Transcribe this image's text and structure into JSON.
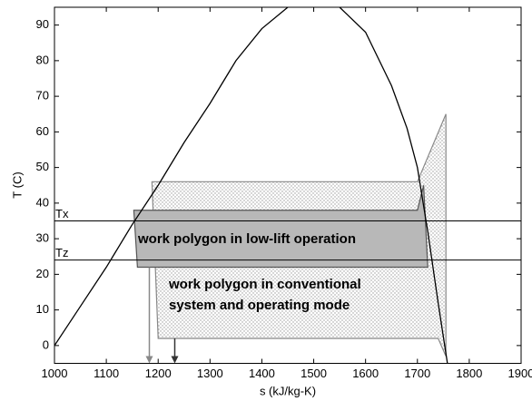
{
  "chart_data": {
    "type": "line",
    "xlabel": "s (kJ/kg-K)",
    "ylabel": "T (C)",
    "xlim": [
      1000,
      1900
    ],
    "ylim": [
      -5,
      95
    ],
    "xticks": [
      1000,
      1100,
      1200,
      1300,
      1400,
      1500,
      1600,
      1700,
      1800,
      1900
    ],
    "yticks": [
      0,
      10,
      20,
      30,
      40,
      50,
      60,
      70,
      80,
      90
    ],
    "curves": [
      {
        "color": "#000000",
        "x": [
          1000,
          1050,
          1100,
          1150,
          1200,
          1250,
          1300,
          1350,
          1400,
          1450,
          1500,
          1550,
          1600,
          1650,
          1680,
          1700,
          1720,
          1740,
          1760
        ],
        "y": [
          0,
          11,
          22,
          34,
          45,
          57,
          68,
          80,
          89,
          95,
          97,
          95,
          88,
          73,
          61,
          50,
          32,
          12,
          -7
        ]
      }
    ],
    "polygons": [
      {
        "fill": "dots",
        "stroke": "#888888",
        "x": [
          1188,
          1700,
          1755,
          1755,
          1740,
          1200
        ],
        "y": [
          46,
          46,
          65,
          -3,
          2,
          2
        ]
      },
      {
        "fill": "#b8b8b8",
        "stroke": "#555555",
        "x": [
          1153,
          1700,
          1712,
          1720,
          1160
        ],
        "y": [
          38,
          38,
          45,
          22,
          22
        ]
      }
    ],
    "hlines": [
      {
        "value": 35,
        "label": "Tx"
      },
      {
        "value": 24,
        "label": "Tz"
      }
    ],
    "arrows": [
      {
        "color": "#888888",
        "x": 1183,
        "y": [
          22,
          -5
        ]
      },
      {
        "color": "#333333",
        "x": 1232,
        "y": [
          2,
          -5
        ]
      }
    ],
    "annotations": [
      "work polygon in low-lift operation",
      "work polygon in conventional",
      "system and operating mode"
    ]
  }
}
